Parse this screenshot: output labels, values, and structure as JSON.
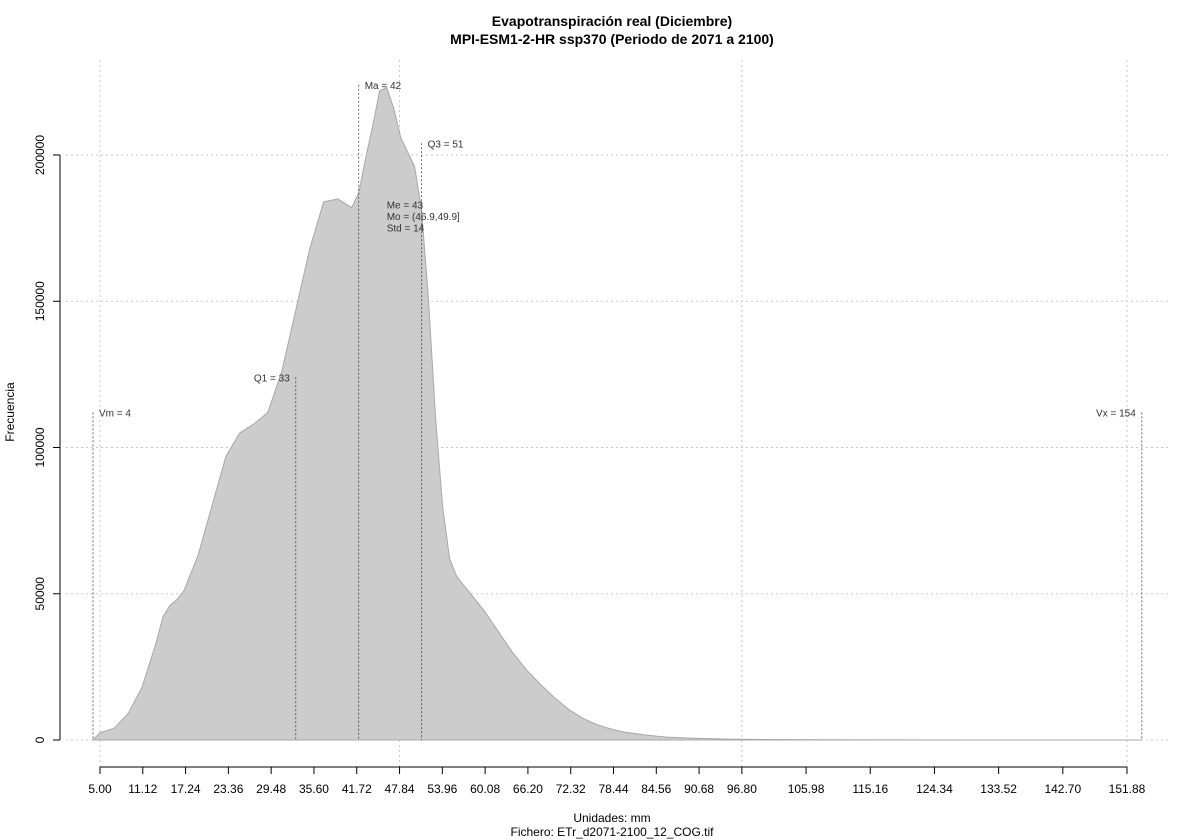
{
  "chart_data": {
    "type": "area",
    "title": "Evapotranspiración real (Diciembre)",
    "subtitle": "MPI-ESM1-2-HR ssp370 (Periodo de 2071 a 2100)",
    "xlabel": "Unidades: mm",
    "file_label": "Fichero: ETr_d2071-2100_12_COG.tif",
    "ylabel": "Frecuencia",
    "xlim": [
      5.0,
      151.88
    ],
    "ylim": [
      0,
      200000
    ],
    "x_ticks": [
      "5.00",
      "11.12",
      "17.24",
      "23.36",
      "29.48",
      "35.60",
      "41.72",
      "47.84",
      "53.96",
      "60.08",
      "66.20",
      "72.32",
      "78.44",
      "84.56",
      "90.68",
      "96.80",
      "105.98",
      "115.16",
      "124.34",
      "133.52",
      "142.70",
      "151.88"
    ],
    "y_ticks": [
      0,
      50000,
      100000,
      150000,
      200000
    ],
    "x_grid": [
      5.0,
      47.84,
      96.8,
      151.88
    ],
    "grid": true,
    "fill_color": "#cccccc",
    "line_color": "#a8a8a8",
    "x": [
      4,
      5,
      7,
      9,
      11,
      13,
      14,
      15,
      16,
      17,
      19,
      21,
      23,
      25,
      27,
      29,
      31,
      33,
      35,
      37,
      39,
      41,
      42,
      43,
      44,
      45,
      46,
      47,
      48,
      49,
      50,
      51,
      52,
      53,
      54,
      55,
      56,
      57,
      58,
      59,
      60,
      62,
      64,
      66,
      68,
      70,
      72,
      74,
      76,
      78,
      80,
      83,
      86,
      90,
      95,
      100,
      110,
      120,
      130,
      140,
      150,
      154
    ],
    "values": [
      0,
      2500,
      4000,
      9000,
      18000,
      33000,
      42000,
      46000,
      48000,
      51000,
      63000,
      80000,
      97000,
      105000,
      108000,
      112000,
      126000,
      147000,
      168000,
      184000,
      185000,
      182000,
      187000,
      199000,
      210000,
      222000,
      223000,
      216000,
      206000,
      201000,
      196000,
      181000,
      150000,
      110000,
      80000,
      62000,
      56000,
      53000,
      50000,
      47000,
      44000,
      37000,
      30000,
      24000,
      19000,
      14500,
      10500,
      7500,
      5300,
      3800,
      2700,
      1700,
      1000,
      600,
      320,
      160,
      60,
      25,
      10,
      4,
      1,
      0
    ],
    "markers": [
      {
        "label": "Vm = 4",
        "x": 4,
        "y_top": 112000,
        "label_side": "right"
      },
      {
        "label": "Q1 = 33",
        "x": 33,
        "y_top": 124000,
        "label_side": "left"
      },
      {
        "label": "Ma = 42",
        "x": 42,
        "y_top": 224000,
        "label_side": "right"
      },
      {
        "label": "Q3 = 51",
        "x": 51,
        "y_top": 204000,
        "label_side": "right"
      },
      {
        "label": "Vx = 154",
        "x": 154,
        "y_top": 112000,
        "label_side": "left"
      }
    ],
    "stats": [
      "Me = 43",
      "Mo = (46.9,49.9]",
      "Std = 14"
    ]
  }
}
